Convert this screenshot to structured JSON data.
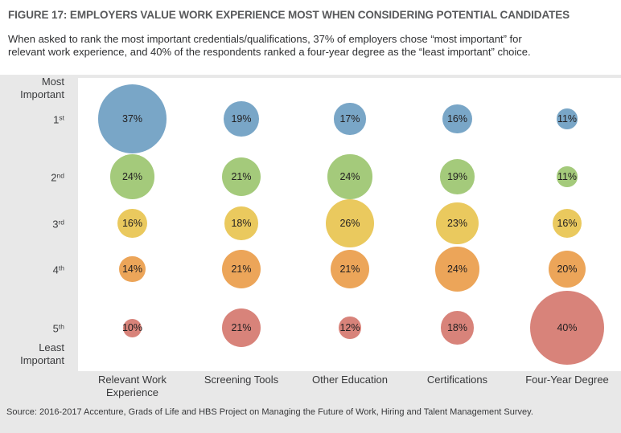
{
  "header": {
    "title": "FIGURE 17: EMPLOYERS VALUE WORK EXPERIENCE MOST WHEN CONSIDERING POTENTIAL CANDIDATES",
    "subtitle_lines": [
      "When asked to rank the most important credentials/qualifications, 37% of employers chose “most important” for",
      "relevant work experience, and 40% of the respondents ranked a four-year degree as the “least important” choice."
    ]
  },
  "chart_data": {
    "type": "bubble",
    "title": "Employer ranking of credentials/qualifications",
    "categories": [
      "Relevant Work Experience",
      "Screening Tools",
      "Other Education",
      "Certifications",
      "Four-Year Degree"
    ],
    "value_suffix": "%",
    "y_axis_top_label_lines": [
      "Most",
      "Important"
    ],
    "y_axis_bottom_label_lines": [
      "Least",
      "Important"
    ],
    "rows": [
      {
        "rank": "1",
        "rank_suffix": "st",
        "color": "#79a6c7",
        "values": [
          37,
          19,
          17,
          16,
          11
        ]
      },
      {
        "rank": "2",
        "rank_suffix": "nd",
        "color": "#a4ca7b",
        "values": [
          24,
          21,
          24,
          19,
          11
        ]
      },
      {
        "rank": "3",
        "rank_suffix": "rd",
        "color": "#eac95e",
        "values": [
          16,
          18,
          26,
          23,
          16
        ]
      },
      {
        "rank": "4",
        "rank_suffix": "th",
        "color": "#eca559",
        "values": [
          14,
          21,
          21,
          24,
          20
        ]
      },
      {
        "rank": "5",
        "rank_suffix": "th",
        "color": "#d8837a",
        "values": [
          10,
          21,
          12,
          18,
          40
        ]
      }
    ],
    "layout_hints": {
      "bubble_size_rule": "diameter proportional to value",
      "panel_background": "#e8e8e8",
      "plot_background": "#ffffff"
    }
  },
  "source": "Source: 2016-2017 Accenture, Grads of Life and HBS Project on Managing the Future of Work, Hiring and Talent Management Survey."
}
